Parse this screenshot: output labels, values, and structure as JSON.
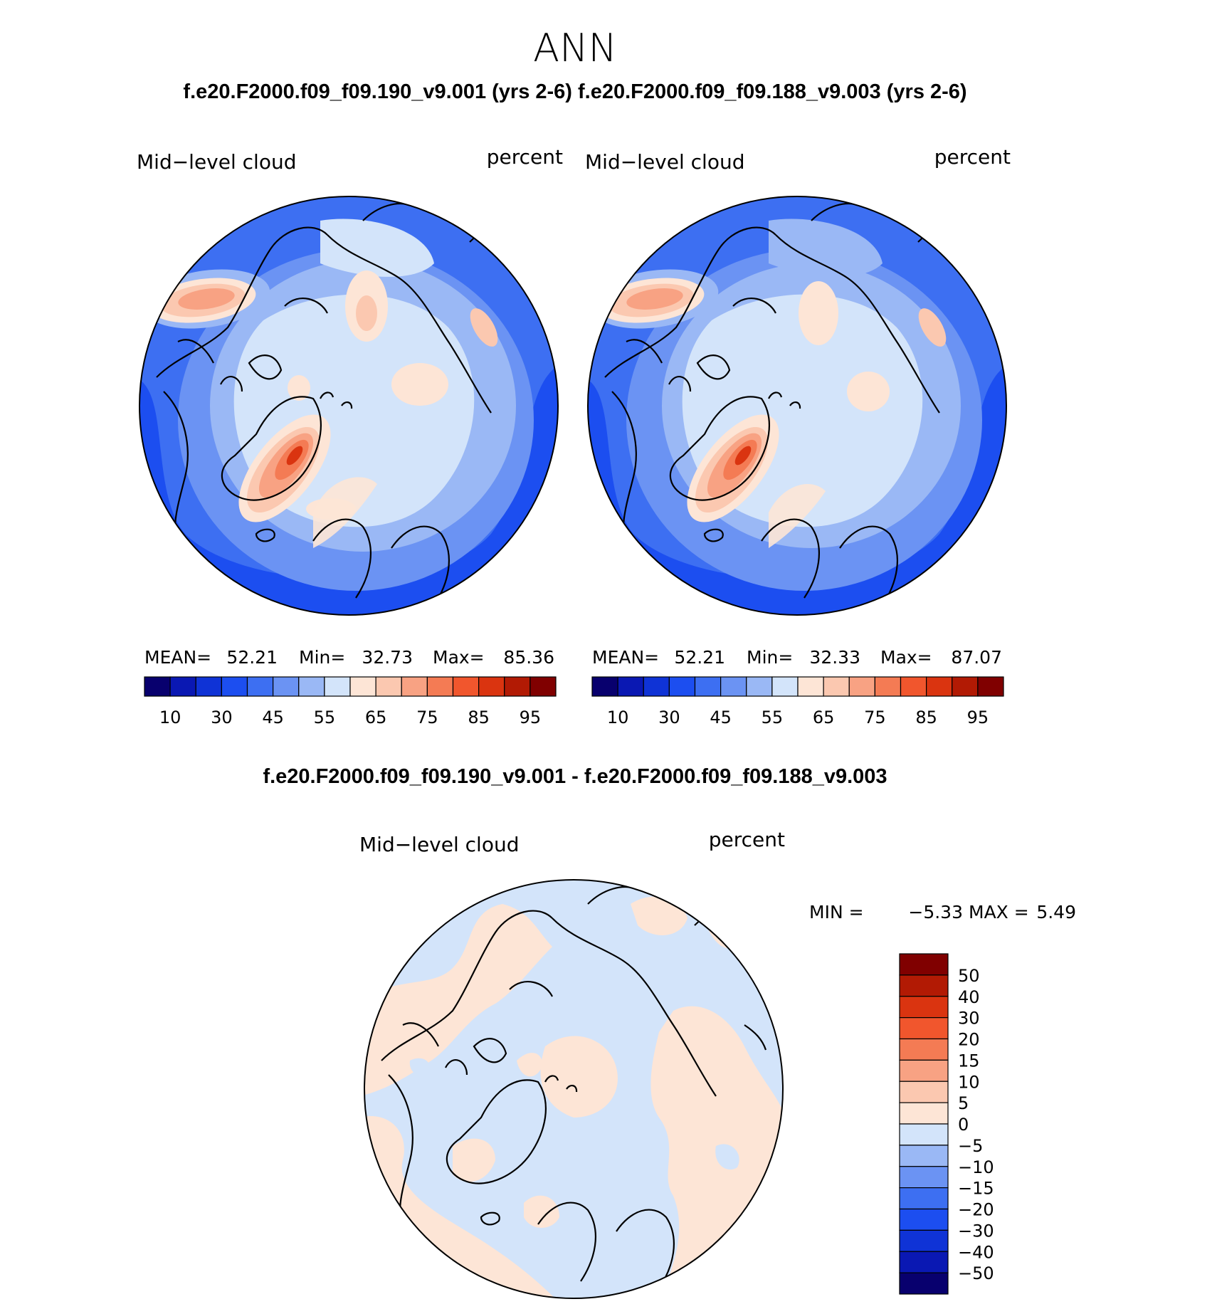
{
  "title": "ANN",
  "top_header": "f.e20.F2000.f09_f09.190_v9.001 (yrs 2-6) f.e20.F2000.f09_f09.188_v9.003 (yrs 2-6)",
  "diff_header": "f.e20.F2000.f09_f09.190_v9.001 - f.e20.F2000.f09_f09.188_v9.003",
  "colors": {
    "abs_scale": [
      "#08006e",
      "#0a18b3",
      "#0f33d6",
      "#1c4ef0",
      "#3d6ff2",
      "#6b93f3",
      "#9ab8f5",
      "#d3e4fa",
      "#fde5d6",
      "#fbc8b0",
      "#f8a283",
      "#f47b54",
      "#f1562d",
      "#da3410",
      "#b21a04",
      "#800000"
    ],
    "diff_scale": [
      "#800000",
      "#b21a04",
      "#da3410",
      "#f1562d",
      "#f47b54",
      "#f8a283",
      "#fbc8b0",
      "#fde5d6",
      "#d3e4fa",
      "#9ab8f5",
      "#6b93f3",
      "#3d6ff2",
      "#1c4ef0",
      "#0f33d6",
      "#0a18b3",
      "#08006e"
    ]
  },
  "chart_data": [
    {
      "type": "heatmap",
      "projection": "north polar stereographic",
      "left_title": "Mid−level cloud",
      "right_title": "percent",
      "stats": {
        "mean_label": "MEAN=",
        "mean": "52.21",
        "min_label": "Min=",
        "min": "32.73",
        "max_label": "Max=",
        "max": "85.36"
      },
      "colorbar_ticks": [
        "10",
        "30",
        "45",
        "55",
        "65",
        "75",
        "85",
        "95"
      ],
      "contour_levels": [
        10,
        20,
        30,
        40,
        45,
        50,
        55,
        60,
        65,
        70,
        75,
        80,
        85,
        90,
        95
      ]
    },
    {
      "type": "heatmap",
      "projection": "north polar stereographic",
      "left_title": "Mid−level cloud",
      "right_title": "percent",
      "stats": {
        "mean_label": "MEAN=",
        "mean": "52.21",
        "min_label": "Min=",
        "min": "32.33",
        "max_label": "Max=",
        "max": "87.07"
      },
      "colorbar_ticks": [
        "10",
        "30",
        "45",
        "55",
        "65",
        "75",
        "85",
        "95"
      ],
      "contour_levels": [
        10,
        20,
        30,
        40,
        45,
        50,
        55,
        60,
        65,
        70,
        75,
        80,
        85,
        90,
        95
      ]
    },
    {
      "type": "heatmap",
      "projection": "north polar stereographic",
      "left_title": "Mid−level cloud",
      "right_title": "percent",
      "stats": {
        "min_label": "MIN =",
        "min": "−5.33",
        "max_label": "MAX =",
        "max": "5.49"
      },
      "colorbar_ticks": [
        "50",
        "40",
        "30",
        "20",
        "15",
        "10",
        "5",
        "0",
        "−5",
        "−10",
        "−15",
        "−20",
        "−30",
        "−40",
        "−50"
      ]
    }
  ]
}
